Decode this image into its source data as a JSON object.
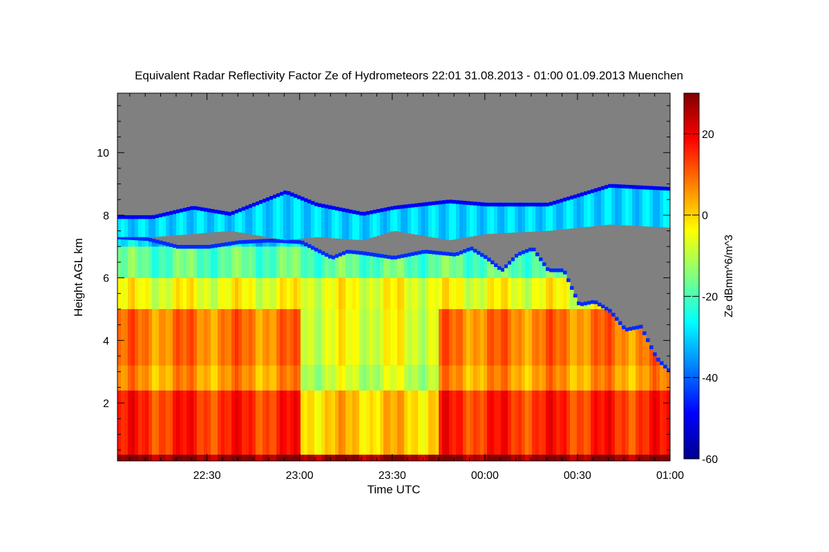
{
  "chart_data": {
    "type": "heatmap",
    "title": "Equivalent Radar Reflectivity Factor Ze of Hydrometeors   22:01 31.08.2013 - 01:00 01.09.2013 Muenchen",
    "xlabel": "Time UTC",
    "ylabel": "Height AGL km",
    "colorbar_label": "Ze dBmm^6/m^3",
    "x_range_minutes": [
      -119,
      60
    ],
    "x_ticks": [
      {
        "minutes": -90,
        "label": "22:30"
      },
      {
        "minutes": -60,
        "label": "23:00"
      },
      {
        "minutes": -30,
        "label": "23:30"
      },
      {
        "minutes": 0,
        "label": "00:00"
      },
      {
        "minutes": 30,
        "label": "00:30"
      },
      {
        "minutes": 60,
        "label": "01:00"
      }
    ],
    "ylim": [
      0.15,
      11.9
    ],
    "y_ticks": [
      2,
      4,
      6,
      8,
      10
    ],
    "colorbar_range": [
      -60,
      30
    ],
    "colorbar_ticks": [
      -60,
      -40,
      -20,
      0,
      20
    ],
    "colormap": [
      "#00008f",
      "#0000ff",
      "#0080ff",
      "#00ffff",
      "#80ff80",
      "#ffff00",
      "#ff8000",
      "#ff0000",
      "#800000"
    ],
    "no_echo_color": "#808080",
    "echo_top_km": [
      [
        -119,
        7.35
      ],
      [
        -110,
        7.3
      ],
      [
        -100,
        7.05
      ],
      [
        -90,
        7.05
      ],
      [
        -80,
        7.2
      ],
      [
        -70,
        7.25
      ],
      [
        -60,
        7.2
      ],
      [
        -50,
        6.7
      ],
      [
        -45,
        6.9
      ],
      [
        -40,
        6.85
      ],
      [
        -30,
        6.7
      ],
      [
        -20,
        6.9
      ],
      [
        -10,
        6.8
      ],
      [
        -5,
        7.0
      ],
      [
        0,
        6.7
      ],
      [
        5,
        6.3
      ],
      [
        10,
        6.8
      ],
      [
        15,
        7.0
      ],
      [
        20,
        6.3
      ],
      [
        25,
        6.3
      ],
      [
        30,
        5.2
      ],
      [
        35,
        5.3
      ],
      [
        40,
        5.0
      ],
      [
        45,
        4.4
      ],
      [
        50,
        4.5
      ],
      [
        55,
        3.5
      ],
      [
        60,
        3.0
      ]
    ],
    "upper_layer_km": [
      [
        -108,
        7.3,
        8.0
      ],
      [
        -95,
        7.4,
        8.3
      ],
      [
        -83,
        7.5,
        8.1
      ],
      [
        -65,
        7.2,
        8.8
      ],
      [
        -55,
        7.3,
        8.4
      ],
      [
        -40,
        7.2,
        8.1
      ],
      [
        -30,
        7.5,
        8.3
      ],
      [
        -12,
        7.2,
        8.5
      ],
      [
        0,
        7.4,
        8.4
      ],
      [
        20,
        7.5,
        8.4
      ],
      [
        40,
        7.7,
        9.0
      ],
      [
        60,
        7.6,
        8.9
      ]
    ],
    "reflectivity_profile": [
      {
        "max_km": 0.35,
        "dbz": 28
      },
      {
        "max_km": 2.4,
        "dbz": 15
      },
      {
        "max_km": 3.2,
        "dbz": 5
      },
      {
        "max_km": 5.0,
        "dbz": 8
      },
      {
        "max_km": 6.0,
        "dbz": -5
      },
      {
        "max_km": 7.0,
        "dbz": -18
      },
      {
        "max_km": 12.0,
        "dbz": -30
      }
    ]
  }
}
